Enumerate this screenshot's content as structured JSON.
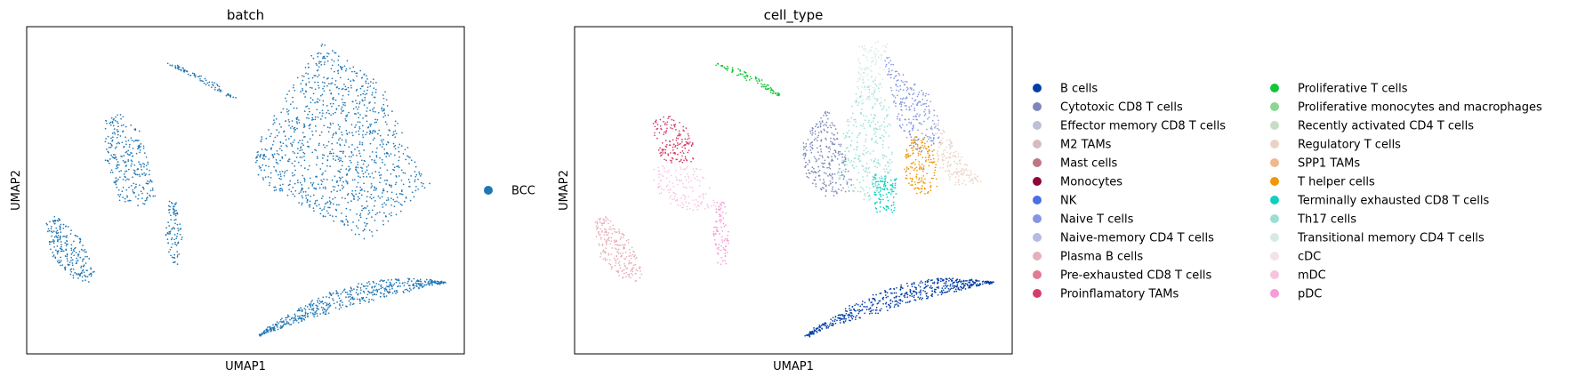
{
  "chart_data": [
    {
      "type": "scatter",
      "title": "batch",
      "xlabel": "UMAP1",
      "ylabel": "UMAP2",
      "legend_position": "right",
      "legend": [
        {
          "name": "BCC",
          "color": "#1f77b4"
        }
      ],
      "clusters": [
        {
          "label": "BCC",
          "color": "#1f77b4",
          "region": "large-triangle"
        },
        {
          "label": "BCC",
          "color": "#1f77b4",
          "region": "bottom-arc"
        },
        {
          "label": "BCC",
          "color": "#1f77b4",
          "region": "left-blob"
        },
        {
          "label": "BCC",
          "color": "#1f77b4",
          "region": "left-middle-swirl"
        },
        {
          "label": "BCC",
          "color": "#1f77b4",
          "region": "vertical-strip"
        },
        {
          "label": "BCC",
          "color": "#1f77b4",
          "region": "top-streak"
        }
      ]
    },
    {
      "type": "scatter",
      "title": "cell_type",
      "xlabel": "UMAP1",
      "ylabel": "UMAP2",
      "legend_position": "right",
      "legend": [
        {
          "name": "B cells",
          "color": "#023fa5"
        },
        {
          "name": "Cytotoxic CD8 T cells",
          "color": "#7d87b9"
        },
        {
          "name": "Effector memory CD8 T cells",
          "color": "#bec1d4"
        },
        {
          "name": "M2 TAMs",
          "color": "#d6bcc0"
        },
        {
          "name": "Mast cells",
          "color": "#bb7784"
        },
        {
          "name": "Monocytes",
          "color": "#8e063b"
        },
        {
          "name": "NK",
          "color": "#4a6fe3"
        },
        {
          "name": "Naive T cells",
          "color": "#8595e1"
        },
        {
          "name": "Naive-memory CD4 T cells",
          "color": "#b5bbe3"
        },
        {
          "name": "Plasma B cells",
          "color": "#e6afb9"
        },
        {
          "name": "Pre-exhausted CD8 T cells",
          "color": "#e07b91"
        },
        {
          "name": "Proinflamatory TAMs",
          "color": "#d33f6a"
        },
        {
          "name": "Proliferative T cells",
          "color": "#11c638"
        },
        {
          "name": "Proliferative monocytes and macrophages",
          "color": "#8dd593"
        },
        {
          "name": "Recently activated CD4 T cells",
          "color": "#c6dec7"
        },
        {
          "name": "Regulatory T cells",
          "color": "#ead3c6"
        },
        {
          "name": "SPP1 TAMs",
          "color": "#f0b98d"
        },
        {
          "name": "T helper cells",
          "color": "#ef9708"
        },
        {
          "name": "Terminally exhausted CD8 T cells",
          "color": "#0fcfc0"
        },
        {
          "name": "Th17 cells",
          "color": "#9cded6"
        },
        {
          "name": "Transitional memory CD4 T cells",
          "color": "#d5eae7"
        },
        {
          "name": "cDC",
          "color": "#f3e1eb"
        },
        {
          "name": "mDC",
          "color": "#f6c4e1"
        },
        {
          "name": "pDC",
          "color": "#f79cd4"
        }
      ],
      "clusters": [
        {
          "label": "B cells",
          "color": "#023fa5",
          "region": "bottom-arc"
        },
        {
          "label": "Proliferative T cells",
          "color": "#11c638",
          "region": "top-streak"
        },
        {
          "label": "Proinflamatory TAMs",
          "color": "#d33f6a",
          "region": "swirl-top"
        },
        {
          "label": "mDC",
          "color": "#f6c4e1",
          "region": "swirl-bottom"
        },
        {
          "label": "Plasma B cells",
          "color": "#e6afb9",
          "region": "left-blob"
        },
        {
          "label": "pDC",
          "color": "#f79cd4",
          "region": "vertical-strip"
        },
        {
          "label": "Cytotoxic CD8 T cells",
          "color": "#7d87b9",
          "region": "triangle-left"
        },
        {
          "label": "Th17 cells",
          "color": "#9cded6",
          "region": "triangle-center"
        },
        {
          "label": "Naive T cells",
          "color": "#8595e1",
          "region": "triangle-top-right"
        },
        {
          "label": "T helper cells",
          "color": "#ef9708",
          "region": "triangle-right"
        },
        {
          "label": "Regulatory T cells",
          "color": "#ead3c6",
          "region": "triangle-far-right"
        },
        {
          "label": "Terminally exhausted CD8 T cells",
          "color": "#0fcfc0",
          "region": "triangle-bottom"
        },
        {
          "label": "Transitional memory CD4 T cells",
          "color": "#d5eae7",
          "region": "triangle-top"
        }
      ]
    }
  ]
}
